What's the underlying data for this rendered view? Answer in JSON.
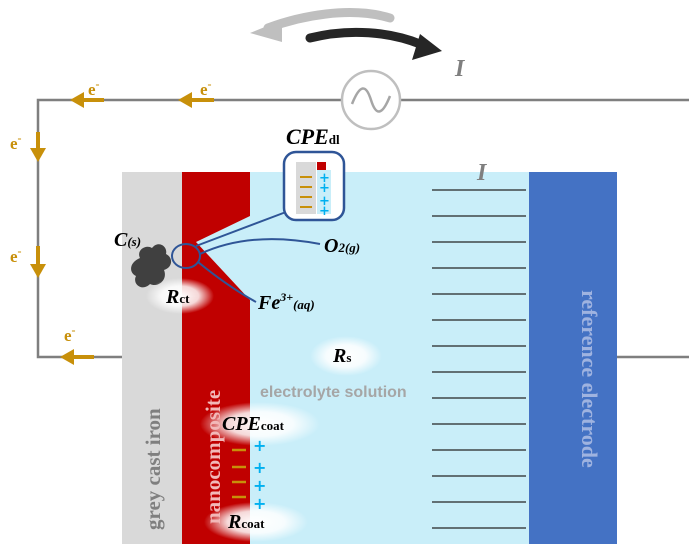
{
  "labels": {
    "current": "I",
    "electron": "e",
    "electron_charge": "-",
    "cpe_dl_main": "CPE",
    "cpe_dl_sub": "dl",
    "carbon_main": "C",
    "carbon_sub": "(s)",
    "rct_main": "R",
    "rct_sub": "ct",
    "oxygen_main": "O",
    "oxygen_sub": "2(g)",
    "iron_main": "Fe",
    "iron_sup": "3+",
    "iron_sub": "(aq)",
    "rs_main": "R",
    "rs_sub": "s",
    "electrolyte": "electrolyte solution",
    "cpe_coat_main": "CPE",
    "cpe_coat_sub": "coat",
    "rcoat_main": "R",
    "rcoat_sub": "coat",
    "cast_iron": "grey cast iron",
    "nanocomposite": "nanocomposite",
    "reference": "reference electrode",
    "plus": "+",
    "minus": "—"
  },
  "colors": {
    "wire": "#7f7f7f",
    "electron_arrow": "#c8900a",
    "cast_iron": "#d9d9d9",
    "nanocomposite": "#c00000",
    "electrolyte": "#c9eef9",
    "reference": "#4472c4",
    "reference_text": "#9fb3e0",
    "electrolyte_text": "#a6a6a6",
    "circle_line": "#2f5597",
    "plus": "#00b0f0",
    "minus": "#c8900a",
    "arrow_dark": "#262626",
    "arrow_light": "#bfbfbf"
  }
}
